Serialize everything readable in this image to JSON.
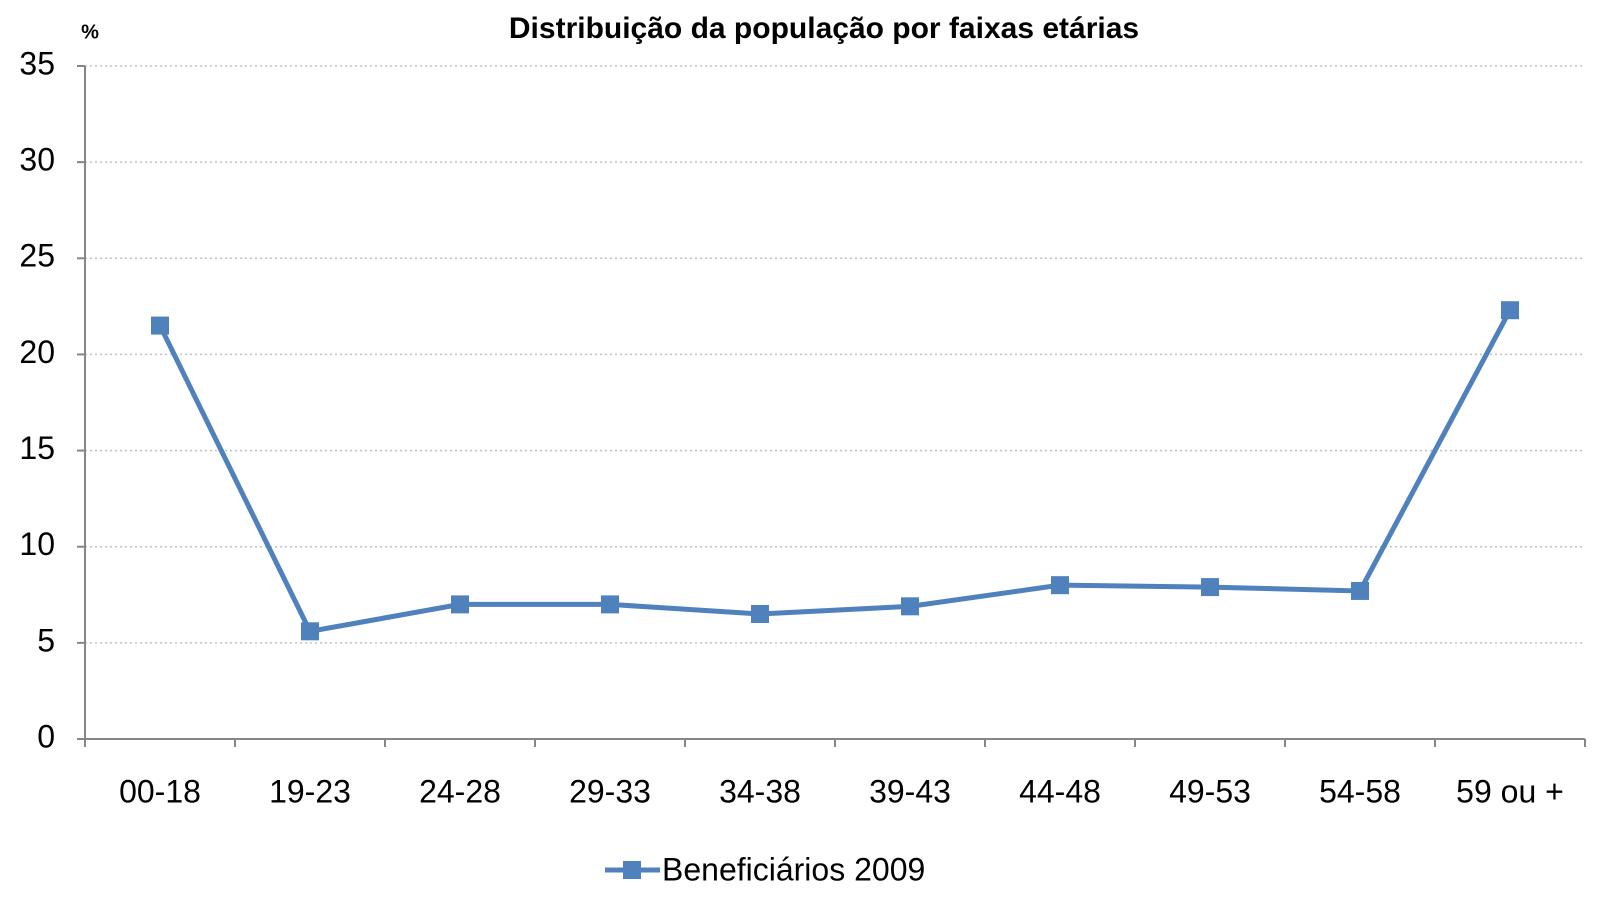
{
  "chart_data": {
    "type": "line",
    "title": "Distribuição da população por faixas etárias",
    "y_label": "%",
    "categories": [
      "00-18",
      "19-23",
      "24-28",
      "29-33",
      "34-38",
      "39-43",
      "44-48",
      "49-53",
      "54-58",
      "59 ou +"
    ],
    "series": [
      {
        "name": "Beneficiários 2009",
        "color": "#4f81bd",
        "values": [
          21.5,
          5.6,
          7.0,
          7.0,
          6.5,
          6.9,
          8.0,
          7.9,
          7.7,
          22.3
        ]
      }
    ],
    "ylim": [
      0,
      35
    ],
    "yticks": [
      0,
      5,
      10,
      15,
      20,
      25,
      30,
      35
    ],
    "grid": true,
    "legend": "bottom"
  }
}
